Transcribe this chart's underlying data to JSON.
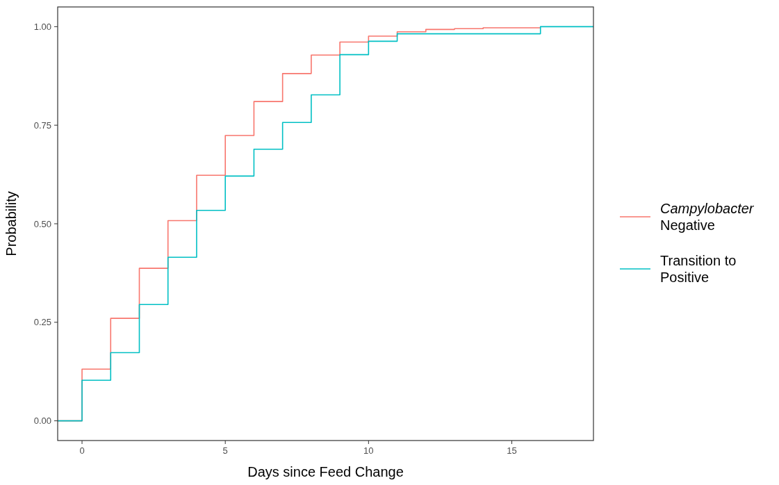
{
  "chart_data": {
    "type": "step",
    "xlabel": "Days since Feed Change",
    "ylabel": "Probability",
    "x": [
      -0.85,
      0,
      1,
      2,
      3,
      4,
      5,
      6,
      7,
      8,
      9,
      10,
      11,
      12,
      13,
      14,
      15,
      16,
      17.85
    ],
    "series": [
      {
        "name": "Campylobacter\nNegative",
        "color": "#f8766d",
        "values": [
          0,
          0.131,
          0.26,
          0.387,
          0.508,
          0.623,
          0.724,
          0.81,
          0.881,
          0.928,
          0.961,
          0.976,
          0.987,
          0.993,
          0.995,
          0.997,
          0.997,
          0.997,
          null
        ]
      },
      {
        "name": "Transition to\nPositive",
        "color": "#00bfc4",
        "values": [
          0,
          0.103,
          0.173,
          0.295,
          0.415,
          0.534,
          0.621,
          0.689,
          0.757,
          0.827,
          0.929,
          0.963,
          0.982,
          0.982,
          0.982,
          0.982,
          0.982,
          1.0,
          1.0
        ]
      }
    ],
    "xlim": [
      -0.85,
      17.85
    ],
    "xticks": [
      0,
      5,
      10,
      15
    ],
    "ylim": [
      -0.05,
      1.05
    ],
    "yticks": [
      {
        "value": 0,
        "label": "0.00"
      },
      {
        "value": 0.25,
        "label": "0.25"
      },
      {
        "value": 0.5,
        "label": "0.50"
      },
      {
        "value": 0.75,
        "label": "0.75"
      },
      {
        "value": 1,
        "label": "1.00"
      }
    ],
    "grid": false,
    "legend": "right"
  }
}
